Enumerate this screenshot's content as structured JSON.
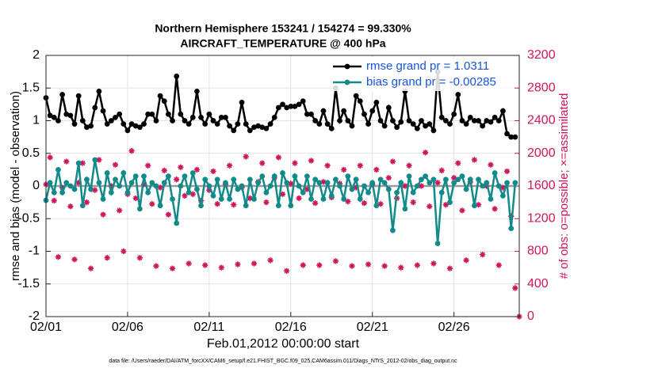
{
  "chart_data": {
    "type": "line",
    "title": "Northern Hemisphere 153241 / 154274 = 99.330%",
    "subtitle": "AIRCRAFT_TEMPERATURE @ 400 hPa",
    "x_label": "Feb.01,2012 00:00:00 start",
    "y_label": "rmse and bias (model - observation)",
    "y2_label": "# of obs: o=possible; ×=assimilated",
    "footnote": "data file: /Users/raeder/DAI/ATM_forcXX/CAM6_setup/f.e21.FHIST_BGC.f09_025.CAM6assim.011/Diags_NTrS_2012-02/obs_diag_output.nc",
    "xlim": [
      0,
      29
    ],
    "xticks": [
      {
        "value": 0,
        "label": "02/01"
      },
      {
        "value": 5,
        "label": "02/06"
      },
      {
        "value": 10,
        "label": "02/11"
      },
      {
        "value": 15,
        "label": "02/16"
      },
      {
        "value": 20,
        "label": "02/21"
      },
      {
        "value": 25,
        "label": "02/26"
      }
    ],
    "ylim": [
      -2,
      2
    ],
    "yticks": [
      -2,
      -1.5,
      -1,
      -0.5,
      0,
      0.5,
      1,
      1.5,
      2
    ],
    "y2lim": [
      0,
      3200
    ],
    "y2ticks": [
      0,
      400,
      800,
      1200,
      1600,
      2000,
      2400,
      2800,
      3200
    ],
    "grid": true,
    "legend": "upper right",
    "zero_line": 0,
    "x": [
      0,
      0.25,
      0.5,
      0.75,
      1,
      1.25,
      1.5,
      1.75,
      2,
      2.25,
      2.5,
      2.75,
      3,
      3.25,
      3.5,
      3.75,
      4,
      4.25,
      4.5,
      4.75,
      5,
      5.25,
      5.5,
      5.75,
      6,
      6.25,
      6.5,
      6.75,
      7,
      7.25,
      7.5,
      7.75,
      8,
      8.25,
      8.5,
      8.75,
      9,
      9.25,
      9.5,
      9.75,
      10,
      10.25,
      10.5,
      10.75,
      11,
      11.25,
      11.5,
      11.75,
      12,
      12.25,
      12.5,
      12.75,
      13,
      13.25,
      13.5,
      13.75,
      14,
      14.25,
      14.5,
      14.75,
      15,
      15.25,
      15.5,
      15.75,
      16,
      16.25,
      16.5,
      16.75,
      17,
      17.25,
      17.5,
      17.75,
      18,
      18.25,
      18.5,
      18.75,
      19,
      19.25,
      19.5,
      19.75,
      20,
      20.25,
      20.5,
      20.75,
      21,
      21.25,
      21.5,
      21.75,
      22,
      22.25,
      22.5,
      22.75,
      23,
      23.25,
      23.5,
      23.75,
      24,
      24.25,
      24.5,
      24.75,
      25,
      25.25,
      25.5,
      25.75,
      26,
      26.25,
      26.5,
      26.75,
      27,
      27.25,
      27.5,
      27.75,
      28,
      28.25,
      28.5,
      28.75,
      29
    ],
    "series": [
      {
        "name": "rmse grand pr = 1.0311",
        "color": "#000000",
        "values": [
          1.35,
          1.08,
          1.05,
          1.0,
          1.4,
          1.1,
          1.08,
          0.95,
          1.38,
          1.0,
          0.9,
          0.92,
          1.2,
          1.45,
          1.15,
          0.95,
          1.0,
          1.05,
          1.1,
          0.95,
          0.85,
          0.95,
          0.92,
          0.9,
          0.95,
          1.1,
          1.1,
          1.0,
          1.38,
          1.3,
          1.1,
          1.0,
          1.68,
          1.1,
          1.0,
          0.95,
          1.05,
          1.45,
          1.05,
          0.95,
          1.1,
          1.0,
          0.95,
          1.05,
          1.05,
          0.92,
          0.85,
          0.95,
          1.28,
          0.95,
          0.85,
          0.9,
          0.92,
          0.9,
          0.88,
          0.95,
          1.05,
          1.2,
          1.25,
          1.2,
          1.22,
          1.22,
          1.25,
          1.3,
          1.1,
          1.1,
          1.0,
          0.95,
          1.15,
          0.95,
          0.88,
          1.5,
          1.0,
          1.15,
          1.0,
          0.92,
          1.38,
          1.3,
          1.1,
          0.95,
          1.15,
          1.28,
          1.0,
          0.92,
          1.2,
          1.0,
          0.9,
          0.98,
          1.45,
          1.0,
          0.95,
          0.88,
          1.0,
          0.92,
          0.95,
          0.85,
          1.75,
          1.05,
          1.0,
          0.95,
          1.1,
          1.4,
          1.0,
          0.95,
          1.05,
          1.0,
          1.0,
          0.92,
          1.0,
          0.98,
          1.05,
          1.0,
          1.15,
          0.8,
          0.75,
          0.75,
          null
        ]
      },
      {
        "name": "bias grand pr = -0.00285",
        "color": "#138a8a",
        "values": [
          -0.22,
          0.05,
          -0.1,
          0.25,
          -0.1,
          0.05,
          0.0,
          -0.05,
          0.35,
          -0.3,
          0.1,
          -0.05,
          0.4,
          0.05,
          -0.2,
          0.2,
          -0.1,
          0.1,
          0.0,
          0.2,
          -0.1,
          0.05,
          0.15,
          -0.35,
          0.15,
          -0.1,
          0.05,
          0.0,
          -0.3,
          0.05,
          0.15,
          -0.2,
          -0.57,
          0.0,
          0.15,
          -0.1,
          0.2,
          -0.05,
          -0.3,
          0.1,
          0.0,
          -0.15,
          0.1,
          -0.2,
          0.05,
          -0.2,
          0.1,
          -0.05,
          0.0,
          -0.3,
          0.1,
          -0.2,
          0.05,
          0.15,
          -0.1,
          0.0,
          0.15,
          -0.3,
          0.2,
          0.05,
          -0.3,
          0.15,
          0.0,
          -0.1,
          0.15,
          -0.2,
          0.1,
          0.05,
          -0.2,
          0.05,
          -0.15,
          0.1,
          0.0,
          -0.2,
          0.15,
          -0.05,
          0.1,
          -0.2,
          0.0,
          -0.1,
          0.05,
          -0.3,
          0.1,
          0.05,
          -0.05,
          -0.68,
          -0.1,
          0.05,
          -0.35,
          0.15,
          -0.1,
          0.0,
          0.1,
          0.15,
          0.05,
          0.1,
          -0.88,
          -0.1,
          0.1,
          -0.25,
          0.05,
          0.1,
          0.15,
          -0.05,
          0.1,
          -0.3,
          0.1,
          0.0,
          0.05,
          -0.2,
          0.2,
          0.0,
          -0.15,
          0.05,
          -0.65,
          0.05,
          null
        ]
      }
    ],
    "obs_count": {
      "color": "#d0155a",
      "axis": "y2",
      "values": [
        1620,
        1950,
        1420,
        730,
        1580,
        1900,
        1350,
        700,
        1640,
        1880,
        1400,
        590,
        1550,
        1920,
        1250,
        720,
        1600,
        1860,
        1300,
        800,
        1500,
        2030,
        1450,
        720,
        1620,
        1850,
        1380,
        620,
        1580,
        1790,
        1250,
        590,
        1680,
        1830,
        1480,
        650,
        1500,
        1800,
        1420,
        630,
        1550,
        1780,
        1380,
        600,
        1620,
        1850,
        1370,
        640,
        1580,
        1960,
        1450,
        650,
        1650,
        1880,
        1400,
        690,
        1700,
        1950,
        1500,
        560,
        1630,
        1880,
        1450,
        630,
        1560,
        1910,
        1390,
        630,
        1650,
        1850,
        1460,
        680,
        1630,
        1800,
        1410,
        620,
        1580,
        1850,
        1390,
        640,
        1620,
        1800,
        1380,
        620,
        1700,
        1900,
        1450,
        600,
        1600,
        1850,
        1400,
        630,
        1600,
        2010,
        1350,
        650,
        1640,
        1790,
        1370,
        590,
        1700,
        1880,
        1300,
        690,
        1650,
        1920,
        1370,
        760,
        1600,
        1860,
        1320,
        630,
        1580,
        1780,
        1230,
        350,
        0
      ]
    }
  }
}
